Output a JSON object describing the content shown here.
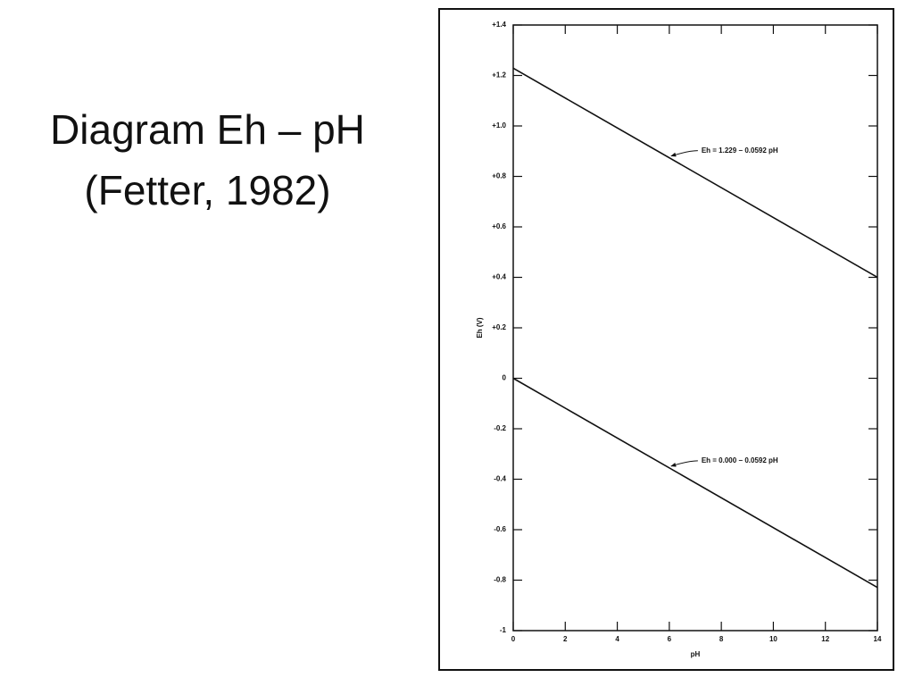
{
  "slide_title": [
    "Diagram Eh – pH",
    "(Fetter, 1982)"
  ],
  "chart_data": {
    "type": "line",
    "x_label": "pH",
    "y_label": "Eh (V)",
    "x": [
      0,
      14
    ],
    "series": [
      {
        "color": "#111111",
        "values": [
          1.229,
          0.4002
        ]
      },
      {
        "color": "#111111",
        "values": [
          0,
          -0.8288
        ]
      }
    ],
    "annotations": [
      "Eh = 1.229 − 0.0592 pH",
      "Eh = 0.000 − 0.0592 pH"
    ],
    "xlim": [
      0,
      14
    ],
    "xticks": [
      0,
      2,
      4,
      6,
      8,
      10,
      12,
      14
    ],
    "ylim": [
      -1,
      1.4
    ],
    "yticks": [
      {
        "value": 1.4,
        "label": "+1.4"
      },
      {
        "value": 1.2,
        "label": "+1.2"
      },
      {
        "value": 1.0,
        "label": "+1.0"
      },
      {
        "value": 0.8,
        "label": "+0.8"
      },
      {
        "value": 0.6,
        "label": "+0.6"
      },
      {
        "value": 0.4,
        "label": "+0.4"
      },
      {
        "value": 0.2,
        "label": "+0.2"
      },
      0,
      -0.2,
      -0.4,
      -0.6,
      -0.8,
      -1
    ],
    "grid": false
  }
}
